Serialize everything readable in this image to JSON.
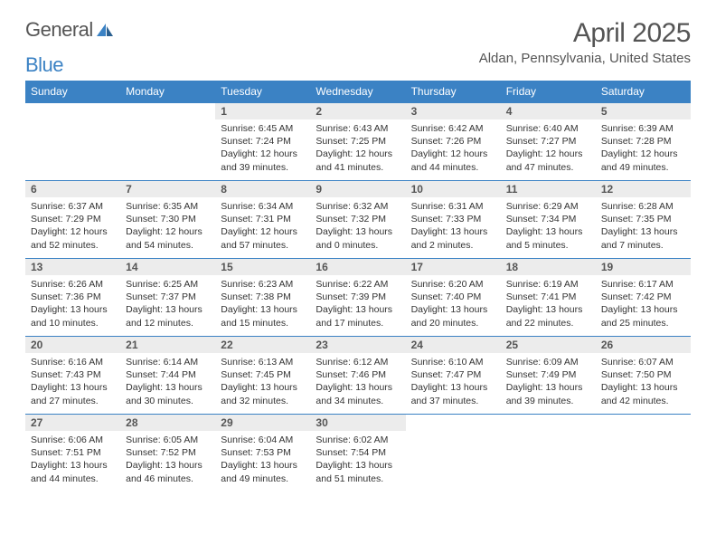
{
  "logo": {
    "text1": "General",
    "text2": "Blue"
  },
  "title": "April 2025",
  "location": "Aldan, Pennsylvania, United States",
  "colors": {
    "header_bg": "#3b82c4",
    "header_text": "#ffffff",
    "border": "#3b82c4",
    "daynum_bg": "#ececec",
    "text_gray": "#555555"
  },
  "daynames": [
    "Sunday",
    "Monday",
    "Tuesday",
    "Wednesday",
    "Thursday",
    "Friday",
    "Saturday"
  ],
  "first_weekday": 2,
  "days_in_month": 30,
  "days": {
    "1": {
      "sunrise": "6:45 AM",
      "sunset": "7:24 PM",
      "daylight": "12 hours and 39 minutes."
    },
    "2": {
      "sunrise": "6:43 AM",
      "sunset": "7:25 PM",
      "daylight": "12 hours and 41 minutes."
    },
    "3": {
      "sunrise": "6:42 AM",
      "sunset": "7:26 PM",
      "daylight": "12 hours and 44 minutes."
    },
    "4": {
      "sunrise": "6:40 AM",
      "sunset": "7:27 PM",
      "daylight": "12 hours and 47 minutes."
    },
    "5": {
      "sunrise": "6:39 AM",
      "sunset": "7:28 PM",
      "daylight": "12 hours and 49 minutes."
    },
    "6": {
      "sunrise": "6:37 AM",
      "sunset": "7:29 PM",
      "daylight": "12 hours and 52 minutes."
    },
    "7": {
      "sunrise": "6:35 AM",
      "sunset": "7:30 PM",
      "daylight": "12 hours and 54 minutes."
    },
    "8": {
      "sunrise": "6:34 AM",
      "sunset": "7:31 PM",
      "daylight": "12 hours and 57 minutes."
    },
    "9": {
      "sunrise": "6:32 AM",
      "sunset": "7:32 PM",
      "daylight": "13 hours and 0 minutes."
    },
    "10": {
      "sunrise": "6:31 AM",
      "sunset": "7:33 PM",
      "daylight": "13 hours and 2 minutes."
    },
    "11": {
      "sunrise": "6:29 AM",
      "sunset": "7:34 PM",
      "daylight": "13 hours and 5 minutes."
    },
    "12": {
      "sunrise": "6:28 AM",
      "sunset": "7:35 PM",
      "daylight": "13 hours and 7 minutes."
    },
    "13": {
      "sunrise": "6:26 AM",
      "sunset": "7:36 PM",
      "daylight": "13 hours and 10 minutes."
    },
    "14": {
      "sunrise": "6:25 AM",
      "sunset": "7:37 PM",
      "daylight": "13 hours and 12 minutes."
    },
    "15": {
      "sunrise": "6:23 AM",
      "sunset": "7:38 PM",
      "daylight": "13 hours and 15 minutes."
    },
    "16": {
      "sunrise": "6:22 AM",
      "sunset": "7:39 PM",
      "daylight": "13 hours and 17 minutes."
    },
    "17": {
      "sunrise": "6:20 AM",
      "sunset": "7:40 PM",
      "daylight": "13 hours and 20 minutes."
    },
    "18": {
      "sunrise": "6:19 AM",
      "sunset": "7:41 PM",
      "daylight": "13 hours and 22 minutes."
    },
    "19": {
      "sunrise": "6:17 AM",
      "sunset": "7:42 PM",
      "daylight": "13 hours and 25 minutes."
    },
    "20": {
      "sunrise": "6:16 AM",
      "sunset": "7:43 PM",
      "daylight": "13 hours and 27 minutes."
    },
    "21": {
      "sunrise": "6:14 AM",
      "sunset": "7:44 PM",
      "daylight": "13 hours and 30 minutes."
    },
    "22": {
      "sunrise": "6:13 AM",
      "sunset": "7:45 PM",
      "daylight": "13 hours and 32 minutes."
    },
    "23": {
      "sunrise": "6:12 AM",
      "sunset": "7:46 PM",
      "daylight": "13 hours and 34 minutes."
    },
    "24": {
      "sunrise": "6:10 AM",
      "sunset": "7:47 PM",
      "daylight": "13 hours and 37 minutes."
    },
    "25": {
      "sunrise": "6:09 AM",
      "sunset": "7:49 PM",
      "daylight": "13 hours and 39 minutes."
    },
    "26": {
      "sunrise": "6:07 AM",
      "sunset": "7:50 PM",
      "daylight": "13 hours and 42 minutes."
    },
    "27": {
      "sunrise": "6:06 AM",
      "sunset": "7:51 PM",
      "daylight": "13 hours and 44 minutes."
    },
    "28": {
      "sunrise": "6:05 AM",
      "sunset": "7:52 PM",
      "daylight": "13 hours and 46 minutes."
    },
    "29": {
      "sunrise": "6:04 AM",
      "sunset": "7:53 PM",
      "daylight": "13 hours and 49 minutes."
    },
    "30": {
      "sunrise": "6:02 AM",
      "sunset": "7:54 PM",
      "daylight": "13 hours and 51 minutes."
    }
  },
  "labels": {
    "sunrise": "Sunrise: ",
    "sunset": "Sunset: ",
    "daylight": "Daylight: "
  }
}
